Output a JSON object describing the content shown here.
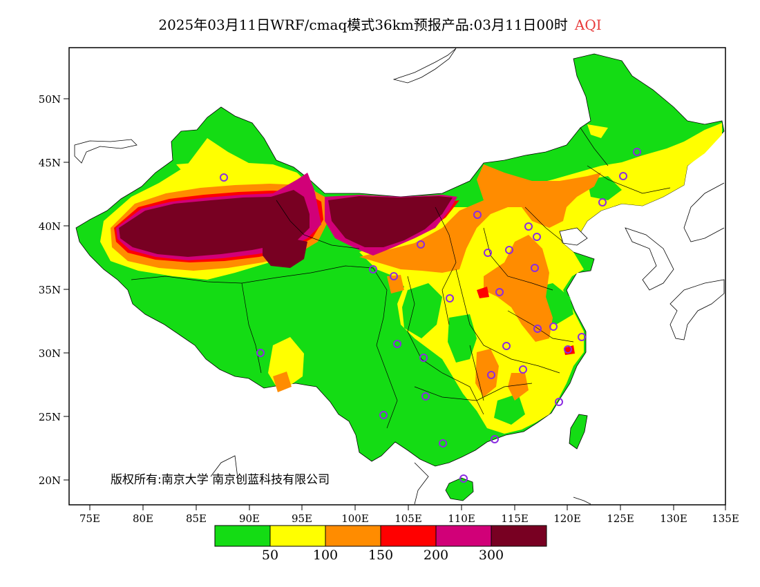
{
  "title": {
    "main": "2025年03月11日WRF/cmaq模式36km预报产品:03月11日00时",
    "variable": "AQI"
  },
  "map": {
    "axis": {
      "lon_ticks": [
        "75E",
        "80E",
        "85E",
        "90E",
        "95E",
        "100E",
        "105E",
        "110E",
        "115E",
        "120E",
        "125E",
        "130E",
        "135E"
      ],
      "lat_ticks": [
        "50N",
        "45N",
        "40N",
        "35N",
        "30N",
        "25N",
        "20N"
      ]
    },
    "copyright": "版权所有:南京大学 南京创蓝科技有限公司",
    "colors": {
      "aqi_0_50": "#14dc14",
      "aqi_50_100": "#ffff00",
      "aqi_100_150": "#ff8c00",
      "aqi_150_200": "#ff0000",
      "aqi_200_300": "#d10078",
      "aqi_300_plus": "#780022",
      "station_marker": "#8b2be2"
    }
  },
  "legend": {
    "labels": [
      "50",
      "100",
      "150",
      "200",
      "300"
    ]
  }
}
